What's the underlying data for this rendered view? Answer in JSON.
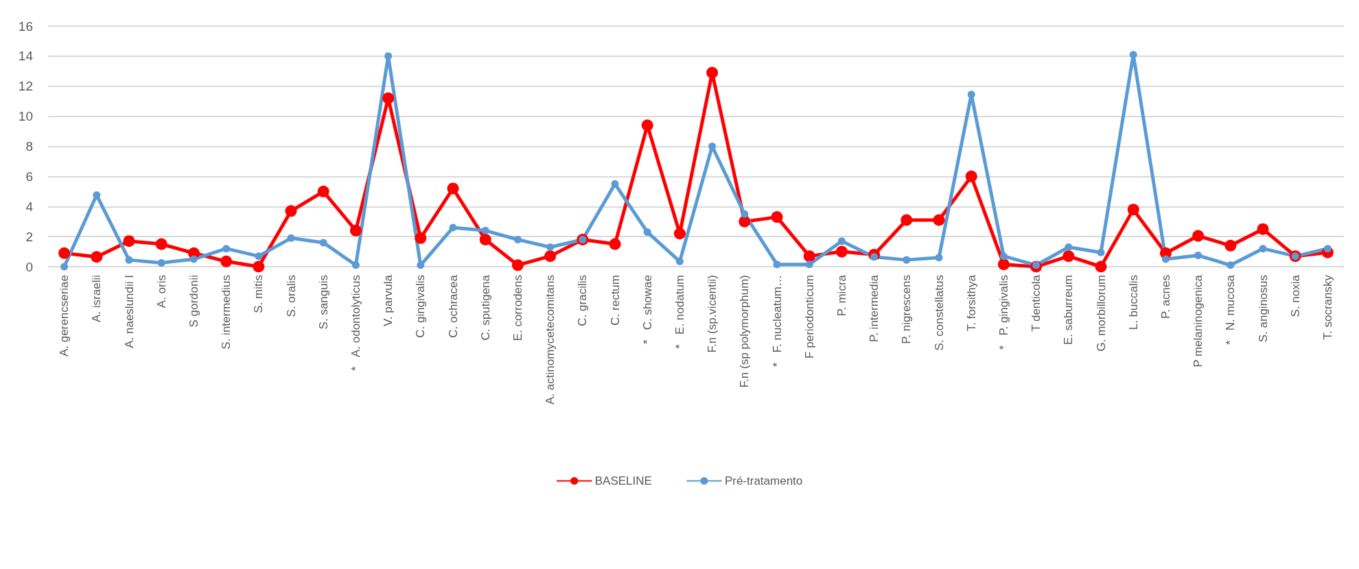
{
  "chart_data": {
    "type": "line",
    "categories": [
      "A. gerencseriae",
      "A. israelii",
      "A. naeslundii I",
      "A. oris",
      "S gordonii",
      "S. intermedius",
      "S. mitis",
      "S. oralis",
      "S. sanguis",
      "*   A. odontolyticus",
      "V. parvula",
      "C. gingivalis",
      "C. ochracea",
      "C. sputigena",
      "E. corrodens",
      "A. actinomycetecomitans",
      "C. gracilis",
      "C. rectum",
      "*   C. showae",
      "*   E. nodatum",
      "F.n (sp.vicentii)",
      "F.n (sp polymorphum)",
      "*   F. nucleatum…",
      "F periodonticum",
      "P. micra",
      "P. intermedia",
      "P. nigrescens",
      "S. constellatus",
      "T. forsithya",
      "*   P. gingivalis",
      "T denticola",
      "E. saburreum",
      "G. morbillorum",
      "L. buccalis",
      "P. acnes",
      "P melaninogenica",
      "*   N. mucosa",
      "S. anginosus",
      "S. noxia",
      "T. socransky"
    ],
    "series": [
      {
        "name": "BASELINE",
        "color": "#ff0000",
        "values": [
          0.9,
          0.65,
          1.7,
          1.5,
          0.9,
          0.35,
          0,
          3.7,
          5.0,
          2.4,
          11.2,
          1.9,
          5.2,
          1.8,
          0.1,
          0.7,
          1.8,
          1.5,
          9.4,
          2.2,
          12.9,
          3.0,
          3.3,
          0.7,
          1.0,
          0.8,
          3.1,
          3.1,
          6.0,
          0.15,
          0,
          0.7,
          0,
          3.8,
          0.9,
          2.05,
          1.4,
          2.5,
          0.7,
          0.95
        ]
      },
      {
        "name": "Pré-tratamento",
        "color": "#5b9bd5",
        "values": [
          0,
          4.76,
          0.45,
          0.25,
          0.5,
          1.2,
          0.7,
          1.9,
          1.6,
          0.1,
          14.0,
          0.1,
          2.6,
          2.4,
          1.8,
          1.3,
          1.8,
          5.5,
          2.3,
          0.35,
          8.0,
          3.5,
          0.15,
          0.15,
          1.7,
          0.65,
          0.45,
          0.6,
          11.45,
          0.7,
          0.1,
          1.3,
          0.95,
          14.1,
          0.5,
          0.75,
          0.1,
          1.2,
          0.7,
          1.2
        ]
      }
    ],
    "ylim": [
      0,
      16
    ],
    "yticks": [
      0,
      2,
      4,
      6,
      8,
      10,
      12,
      14,
      16
    ],
    "grid": "y",
    "legend": "bottom",
    "marker": "circle",
    "line_style": "solid"
  }
}
